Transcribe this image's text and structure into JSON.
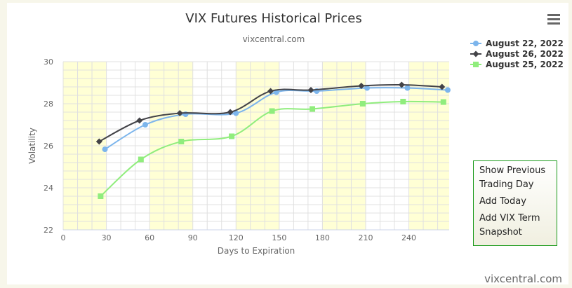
{
  "chart_data": {
    "type": "line",
    "title": "VIX Futures Historical Prices",
    "subtitle": "vixcentral.com",
    "xlabel": "Days to Expiration",
    "ylabel": "Volatility",
    "xlim": [
      0,
      268
    ],
    "ylim": [
      22,
      30
    ],
    "xticks": [
      0,
      30,
      60,
      90,
      120,
      150,
      180,
      210,
      240
    ],
    "yticks": [
      22,
      24,
      26,
      28,
      30
    ],
    "grid": true,
    "legend_position": "top-right",
    "series": [
      {
        "name": "August 22, 2022",
        "color": "#7cb5ec",
        "marker": "circle",
        "x": [
          29,
          57,
          85,
          120,
          148,
          176,
          211,
          239,
          267
        ],
        "y": [
          25.83,
          27.0,
          27.5,
          27.55,
          28.55,
          28.6,
          28.75,
          28.75,
          28.65
        ]
      },
      {
        "name": "August 26, 2022",
        "color": "#434348",
        "marker": "diamond",
        "x": [
          25,
          53,
          81,
          116,
          144,
          172,
          207,
          235,
          263
        ],
        "y": [
          26.2,
          27.2,
          27.55,
          27.6,
          28.6,
          28.65,
          28.85,
          28.9,
          28.8
        ]
      },
      {
        "name": "August 25, 2022",
        "color": "#90ed7d",
        "marker": "square",
        "x": [
          26,
          54,
          82,
          117,
          145,
          173,
          208,
          236,
          264
        ],
        "y": [
          23.6,
          25.35,
          26.2,
          26.45,
          27.65,
          27.75,
          28.0,
          28.1,
          28.08
        ]
      }
    ],
    "band_color": "#ffffd5"
  },
  "menu_icon": "hamburger-icon",
  "buttons": [
    "Show Previous Trading Day",
    "Add Today",
    "Add VIX Term Snapshot"
  ],
  "credit": "vixcentral.com"
}
